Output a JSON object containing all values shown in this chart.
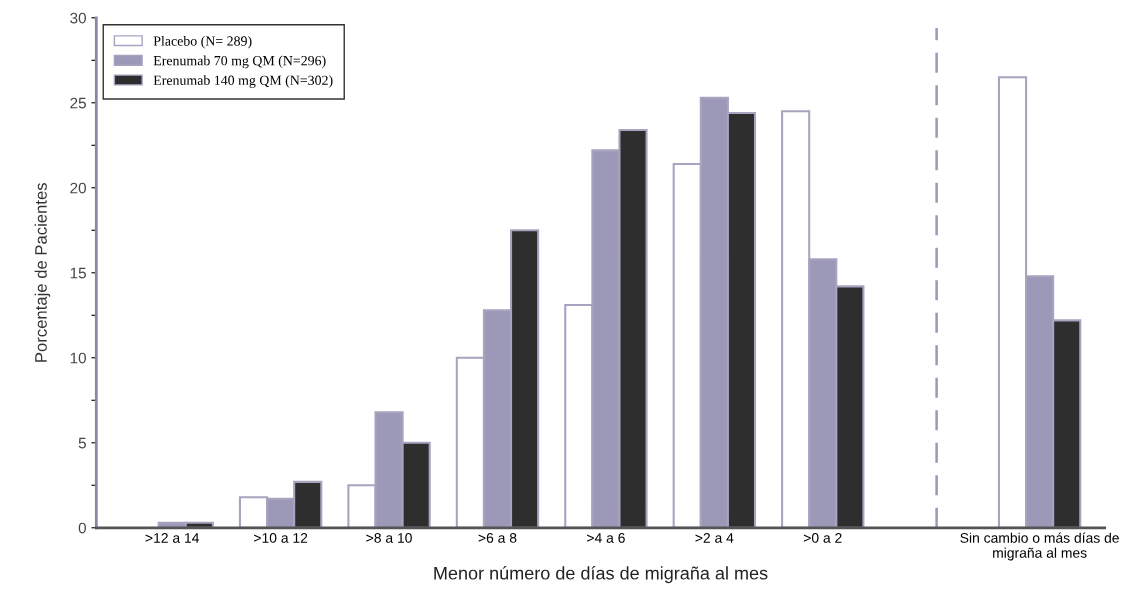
{
  "chart_data": {
    "type": "bar",
    "xlabel": "Menor número de días de migraña al mes",
    "ylabel": "Porcentaje de Pacientes",
    "categories": [
      ">12 a 14",
      ">10 a 12",
      ">8 a 10",
      ">6 a 8",
      ">4 a 6",
      ">2 a 4",
      ">0 a 2",
      null,
      "Sin cambio o más días de\nmigraña al mes"
    ],
    "series": [
      {
        "name": "Placebo (N= 289)",
        "color": "#ffffff",
        "values": [
          null,
          1.8,
          2.5,
          10.0,
          13.1,
          21.4,
          24.5,
          null,
          26.5
        ]
      },
      {
        "name": "Erenumab 70 mg QM (N=296)",
        "color": "#9c98b8",
        "values": [
          0.3,
          1.7,
          6.8,
          12.8,
          22.2,
          25.3,
          15.8,
          null,
          14.8
        ]
      },
      {
        "name": "Erenumab 140 mg QM (N=302)",
        "color": "#2e2e2e",
        "values": [
          0.3,
          2.7,
          5.0,
          17.5,
          23.4,
          24.4,
          14.2,
          null,
          12.2
        ]
      }
    ],
    "ylim": [
      0,
      30
    ],
    "yticks": [
      0,
      {
        "value": 2.5,
        "label": null
      },
      5,
      {
        "value": 7.5,
        "label": null
      },
      10,
      {
        "value": 12.5,
        "label": null
      },
      15,
      {
        "value": 17.5,
        "label": null
      },
      20,
      {
        "value": 22.5,
        "label": null
      },
      25,
      {
        "value": 27.5,
        "label": null
      },
      30
    ],
    "legend": "top left"
  }
}
